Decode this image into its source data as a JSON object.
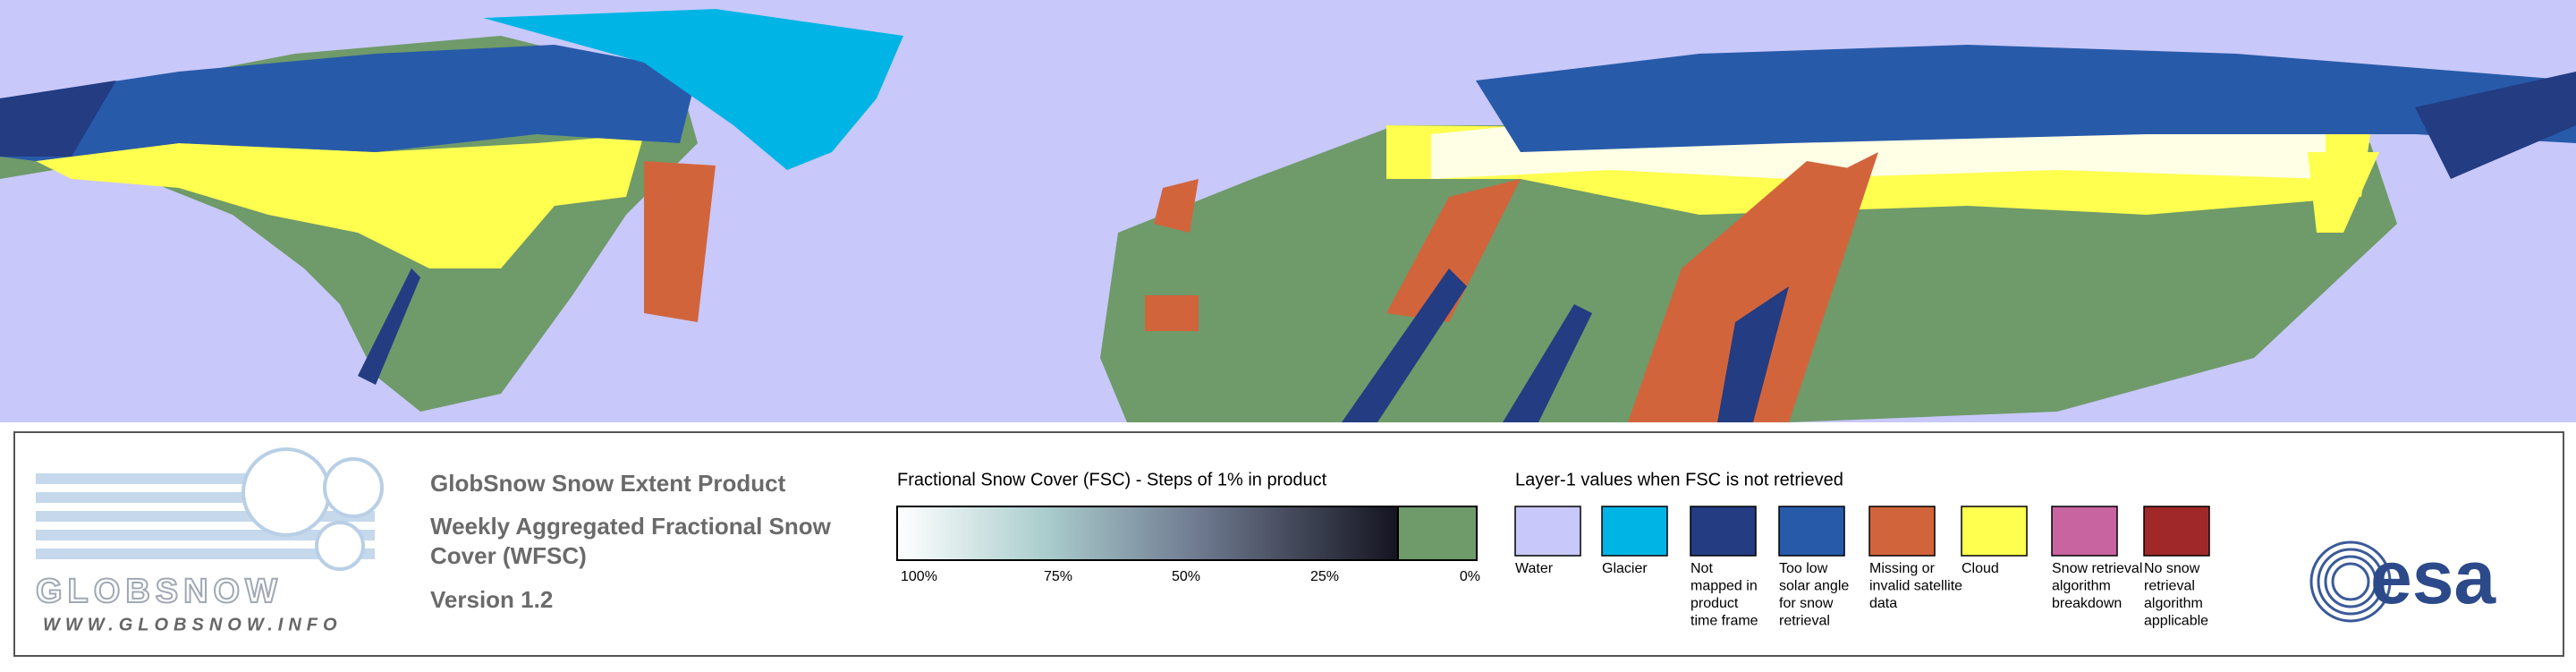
{
  "header": {
    "title": "GlobSnow Snow Extent Product",
    "subtitle": "Weekly Aggregated Fractional Snow Cover (WFSC)",
    "version": "Version 1.2"
  },
  "logo": {
    "name": "GLOBSNOW",
    "url": "WWW.GLOBSNOW.INFO",
    "agency": "esa"
  },
  "fsc_scale": {
    "title": "Fractional Snow Cover (FSC) - Steps of 1% in product",
    "labels": [
      "100%",
      "75%",
      "50%",
      "25%",
      "0%"
    ]
  },
  "layer1": {
    "title": "Layer-1 values when FSC is not retrieved",
    "items": [
      {
        "label": [
          "Water"
        ],
        "color": "#c8c8fa"
      },
      {
        "label": [
          "Glacier"
        ],
        "color": "#00b4e6"
      },
      {
        "label": [
          "Not",
          "mapped in",
          "product",
          "time frame"
        ],
        "color": "#233c82"
      },
      {
        "label": [
          "Too low",
          "solar angle",
          "for snow",
          "retrieval"
        ],
        "color": "#285aaa"
      },
      {
        "label": [
          "Missing or",
          "invalid satellite",
          "data"
        ],
        "color": "#d2643c"
      },
      {
        "label": [
          "Cloud"
        ],
        "color": "#ffff50"
      },
      {
        "label": [
          "Snow retrieval",
          "algorithm",
          "breakdown"
        ],
        "color": "#c864a0"
      },
      {
        "label": [
          "No snow",
          "retrieval",
          "algorithm",
          "applicable"
        ],
        "color": "#a02828"
      }
    ]
  }
}
